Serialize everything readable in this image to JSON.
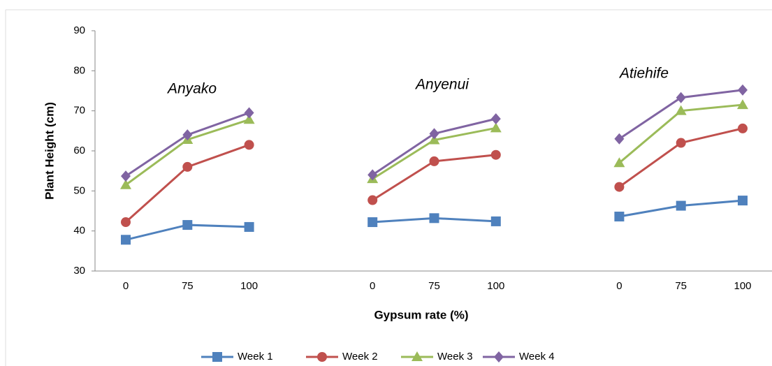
{
  "chart_data": {
    "type": "line",
    "x_label": "Gypsum rate (%)",
    "y_label": "Plant Height (cm)",
    "annotations": [
      "Anyako",
      "Anyenui",
      "Atiehife"
    ],
    "categories": [
      "0",
      "75",
      "100",
      null,
      "0",
      "75",
      "100",
      null,
      "0",
      "75",
      "100"
    ],
    "series": [
      {
        "name": "Week 1",
        "color": "#4f81bd",
        "marker": "square",
        "values": [
          37.8,
          41.5,
          41,
          null,
          42.2,
          43.2,
          42.4,
          null,
          43.6,
          46.3,
          47.6
        ]
      },
      {
        "name": "Week 2",
        "color": "#c0504d",
        "marker": "circle",
        "values": [
          42.2,
          56,
          61.5,
          null,
          47.7,
          57.4,
          59,
          null,
          51,
          62,
          65.6
        ]
      },
      {
        "name": "Week 3",
        "color": "#9bbb59",
        "marker": "triangle",
        "values": [
          51.5,
          62.8,
          67.8,
          null,
          53,
          62.7,
          65.7,
          null,
          57,
          70,
          71.5
        ]
      },
      {
        "name": "Week 4",
        "color": "#8064a2",
        "marker": "diamond",
        "values": [
          53.7,
          64,
          69.5,
          null,
          54,
          64.3,
          68,
          null,
          63,
          73.3,
          75.2
        ]
      }
    ],
    "ylim": [
      30,
      90
    ],
    "yticks": [
      30,
      40,
      50,
      60,
      70,
      80,
      90
    ],
    "grid": false,
    "legend": "bottom"
  }
}
